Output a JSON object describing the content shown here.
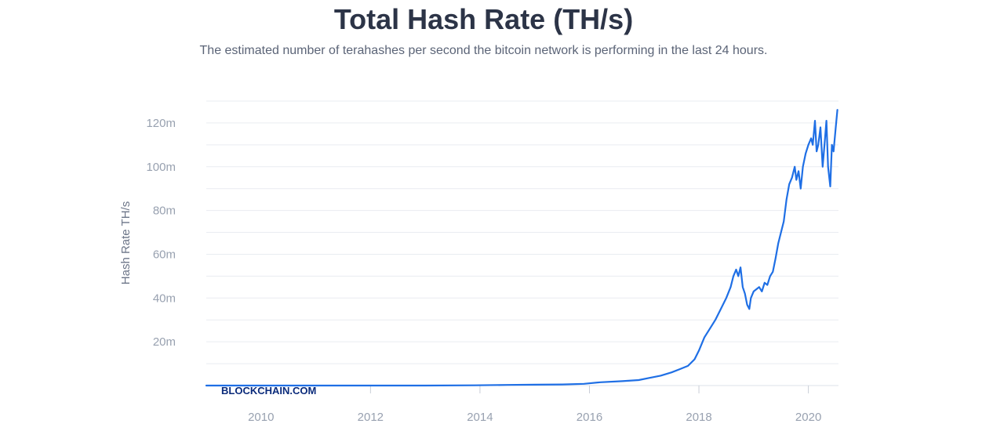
{
  "header": {
    "title": "Total Hash Rate (TH/s)",
    "subtitle": "The estimated number of terahashes per second the bitcoin network is performing in the last 24 hours."
  },
  "watermark": "BLOCKCHAIN.COM",
  "colors": {
    "line": "#1f6fe5",
    "grid": "#e9ecf1",
    "title": "#2c3447"
  },
  "chart_data": {
    "type": "line",
    "title": "Total Hash Rate (TH/s)",
    "subtitle": "The estimated number of terahashes per second the bitcoin network is performing in the last 24 hours.",
    "xlabel": "",
    "ylabel": "Hash Rate TH/s",
    "xlim": [
      2009.0,
      2020.55
    ],
    "ylim": [
      0,
      130
    ],
    "x_ticks": [
      2010,
      2012,
      2014,
      2016,
      2018,
      2020
    ],
    "x_tick_labels": [
      "2010",
      "2012",
      "2014",
      "2016",
      "2018",
      "2020"
    ],
    "y_ticks": [
      20,
      40,
      60,
      80,
      100,
      120
    ],
    "y_tick_labels": [
      "20m",
      "40m",
      "60m",
      "80m",
      "100m",
      "120m"
    ],
    "grid": true,
    "legend": "none",
    "series": [
      {
        "x": [
          2009.0,
          2010.0,
          2011.0,
          2012.0,
          2013.0,
          2013.9,
          2014.5,
          2015.0,
          2015.5,
          2015.9,
          2016.2,
          2016.6,
          2016.9,
          2017.1,
          2017.3,
          2017.5,
          2017.65,
          2017.8,
          2017.92,
          2018.0,
          2018.1,
          2018.2,
          2018.3,
          2018.4,
          2018.5,
          2018.58,
          2018.63,
          2018.68,
          2018.72,
          2018.76,
          2018.8,
          2018.84,
          2018.88,
          2018.92,
          2018.95,
          2019.0,
          2019.05,
          2019.1,
          2019.15,
          2019.2,
          2019.25,
          2019.3,
          2019.35,
          2019.4,
          2019.45,
          2019.5,
          2019.55,
          2019.6,
          2019.65,
          2019.7,
          2019.75,
          2019.78,
          2019.82,
          2019.86,
          2019.9,
          2019.95,
          2020.0,
          2020.05,
          2020.08,
          2020.12,
          2020.15,
          2020.18,
          2020.22,
          2020.26,
          2020.3,
          2020.33,
          2020.36,
          2020.4,
          2020.43,
          2020.46,
          2020.5,
          2020.53
        ],
        "values": [
          0,
          0,
          0,
          0,
          0,
          0.1,
          0.3,
          0.4,
          0.5,
          0.8,
          1.5,
          2.0,
          2.5,
          3.5,
          4.5,
          6.0,
          7.5,
          9.0,
          12.0,
          16.0,
          22.0,
          26.0,
          30.0,
          35.0,
          40.0,
          45.0,
          50.0,
          53.0,
          50.0,
          54.0,
          45.0,
          42.0,
          37.0,
          35.0,
          40.0,
          43.0,
          44.0,
          45.0,
          43.0,
          47.0,
          46.0,
          50.0,
          52.0,
          58.0,
          65.0,
          70.0,
          75.0,
          85.0,
          92.0,
          95.0,
          100.0,
          94.0,
          98.0,
          90.0,
          100.0,
          106.0,
          110.0,
          113.0,
          110.0,
          121.0,
          107.0,
          110.0,
          118.0,
          100.0,
          112.0,
          121.0,
          100.0,
          91.0,
          110.0,
          107.0,
          118.0,
          126.0
        ]
      }
    ]
  }
}
